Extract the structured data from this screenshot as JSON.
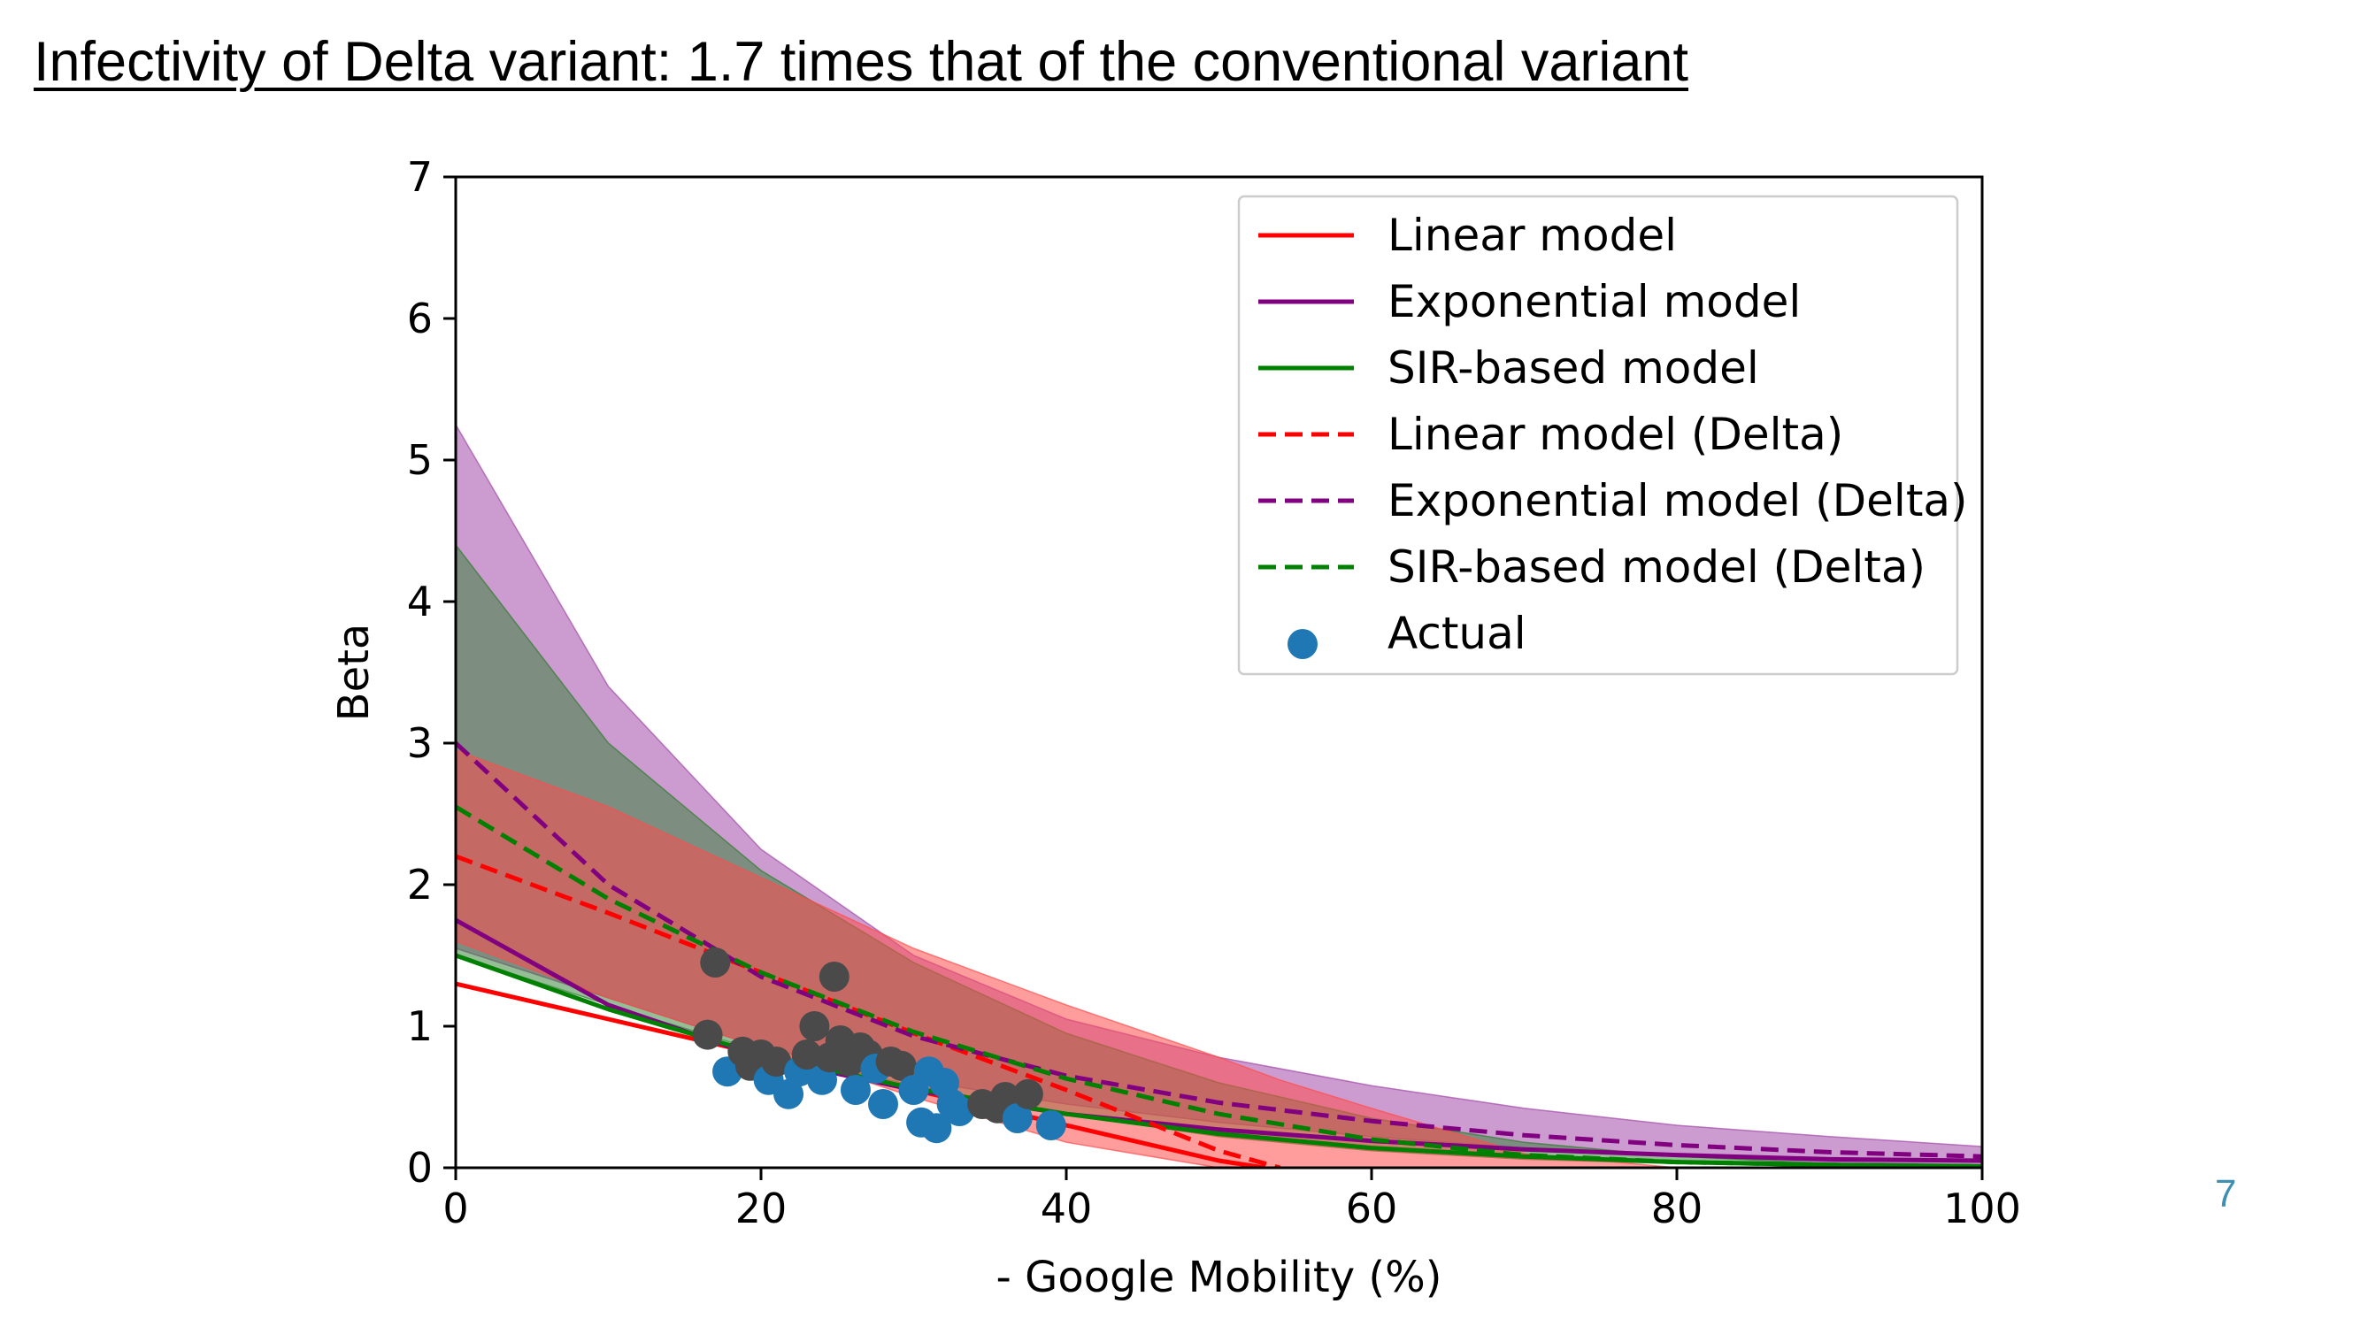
{
  "slide": {
    "title": "Infectivity of Delta variant: 1.7 times that of the conventional variant",
    "page_number": "7"
  },
  "chart_data": {
    "type": "line",
    "xlabel": "- Google Mobility (%)",
    "ylabel": "Beta",
    "xlim": [
      0,
      100
    ],
    "ylim": [
      0,
      7
    ],
    "xticks": [
      0,
      20,
      40,
      60,
      80,
      100
    ],
    "yticks": [
      0,
      1,
      2,
      3,
      4,
      5,
      6,
      7
    ],
    "grid": false,
    "legend_position": "top-right",
    "colors": {
      "linear": "#ff0000",
      "exponential": "#800080",
      "sir": "#008000",
      "actual": "#1f77b4",
      "actual_overlap": "#4a4a4a"
    },
    "bands": [
      {
        "model": "exponential",
        "color": "#a24aaa",
        "opacity": 0.55,
        "x": [
          0,
          10,
          20,
          30,
          40,
          50,
          60,
          70,
          80,
          90,
          100
        ],
        "lower": [
          1.55,
          1.2,
          0.85,
          0.62,
          0.45,
          0.32,
          0.22,
          0.14,
          0.08,
          0.04,
          0.02
        ],
        "upper": [
          5.25,
          3.4,
          2.25,
          1.5,
          1.05,
          0.78,
          0.58,
          0.42,
          0.3,
          0.22,
          0.15
        ]
      },
      {
        "model": "sir",
        "color": "#2e7d2e",
        "opacity": 0.5,
        "x": [
          0,
          10,
          20,
          30,
          40,
          50,
          60,
          70,
          80,
          90,
          100
        ],
        "lower": [
          1.5,
          1.15,
          0.82,
          0.58,
          0.38,
          0.22,
          0.12,
          0.06,
          0.03,
          0.01,
          0.0
        ],
        "upper": [
          4.4,
          3.0,
          2.1,
          1.45,
          0.95,
          0.6,
          0.35,
          0.18,
          0.08,
          0.03,
          0.01
        ]
      },
      {
        "model": "linear",
        "color": "#ff4d4d",
        "opacity": 0.55,
        "x": [
          0,
          10,
          20,
          30,
          40,
          50,
          54,
          60,
          70,
          80,
          90,
          100
        ],
        "lower": [
          1.6,
          1.2,
          0.85,
          0.5,
          0.18,
          0.0,
          0.0,
          0.0,
          0.0,
          0.0,
          0.0,
          0.0
        ],
        "upper": [
          2.95,
          2.55,
          2.05,
          1.55,
          1.15,
          0.78,
          0.62,
          0.42,
          0.1,
          0.0,
          0.0,
          0.0
        ]
      }
    ],
    "series": [
      {
        "name": "Linear model",
        "color": "#ff0000",
        "dashed": false,
        "x": [
          0,
          10,
          20,
          30,
          40,
          50,
          53
        ],
        "y": [
          1.3,
          1.05,
          0.8,
          0.55,
          0.3,
          0.05,
          0.0
        ]
      },
      {
        "name": "Exponential model",
        "color": "#800080",
        "dashed": false,
        "x": [
          0,
          10,
          20,
          30,
          40,
          50,
          60,
          70,
          80,
          90,
          100
        ],
        "y": [
          1.75,
          1.15,
          0.78,
          0.55,
          0.38,
          0.27,
          0.19,
          0.13,
          0.09,
          0.06,
          0.05
        ]
      },
      {
        "name": "SIR-based model",
        "color": "#008000",
        "dashed": false,
        "x": [
          0,
          10,
          20,
          30,
          40,
          50,
          60,
          70,
          80,
          90,
          100
        ],
        "y": [
          1.5,
          1.12,
          0.8,
          0.56,
          0.38,
          0.24,
          0.14,
          0.08,
          0.04,
          0.02,
          0.01
        ]
      },
      {
        "name": "Linear model (Delta)",
        "color": "#ff0000",
        "dashed": true,
        "x": [
          0,
          10,
          20,
          30,
          40,
          50,
          54
        ],
        "y": [
          2.2,
          1.8,
          1.38,
          0.95,
          0.55,
          0.12,
          0.0
        ]
      },
      {
        "name": "Exponential model (Delta)",
        "color": "#800080",
        "dashed": true,
        "x": [
          0,
          10,
          20,
          30,
          40,
          50,
          60,
          70,
          80,
          90,
          100
        ],
        "y": [
          3.0,
          2.0,
          1.35,
          0.93,
          0.65,
          0.46,
          0.33,
          0.23,
          0.16,
          0.11,
          0.08
        ]
      },
      {
        "name": "SIR-based model (Delta)",
        "color": "#008000",
        "dashed": true,
        "x": [
          0,
          10,
          20,
          30,
          40,
          50,
          60,
          70,
          80,
          90,
          100
        ],
        "y": [
          2.55,
          1.9,
          1.38,
          0.96,
          0.63,
          0.38,
          0.2,
          0.09,
          0.04,
          0.02,
          0.01
        ]
      }
    ],
    "scatter": {
      "name": "Actual",
      "color": "#1f77b4",
      "points": [
        [
          16.5,
          0.94
        ],
        [
          17.0,
          1.45
        ],
        [
          17.8,
          0.68
        ],
        [
          18.8,
          0.82
        ],
        [
          19.3,
          0.72
        ],
        [
          20.0,
          0.8
        ],
        [
          20.5,
          0.62
        ],
        [
          21.0,
          0.75
        ],
        [
          21.8,
          0.52
        ],
        [
          22.5,
          0.68
        ],
        [
          23.0,
          0.8
        ],
        [
          23.5,
          1.0
        ],
        [
          24.0,
          0.62
        ],
        [
          24.5,
          0.78
        ],
        [
          24.8,
          1.35
        ],
        [
          25.2,
          0.9
        ],
        [
          25.8,
          0.75
        ],
        [
          26.2,
          0.55
        ],
        [
          26.5,
          0.85
        ],
        [
          27.0,
          0.8
        ],
        [
          27.5,
          0.7
        ],
        [
          28.0,
          0.45
        ],
        [
          28.5,
          0.75
        ],
        [
          29.2,
          0.72
        ],
        [
          30.0,
          0.55
        ],
        [
          30.5,
          0.32
        ],
        [
          31.0,
          0.68
        ],
        [
          31.5,
          0.28
        ],
        [
          32.0,
          0.6
        ],
        [
          32.5,
          0.45
        ],
        [
          33.0,
          0.4
        ],
        [
          34.5,
          0.45
        ],
        [
          35.5,
          0.42
        ],
        [
          36.0,
          0.5
        ],
        [
          36.8,
          0.35
        ],
        [
          37.5,
          0.52
        ],
        [
          39.0,
          0.3
        ]
      ]
    }
  }
}
